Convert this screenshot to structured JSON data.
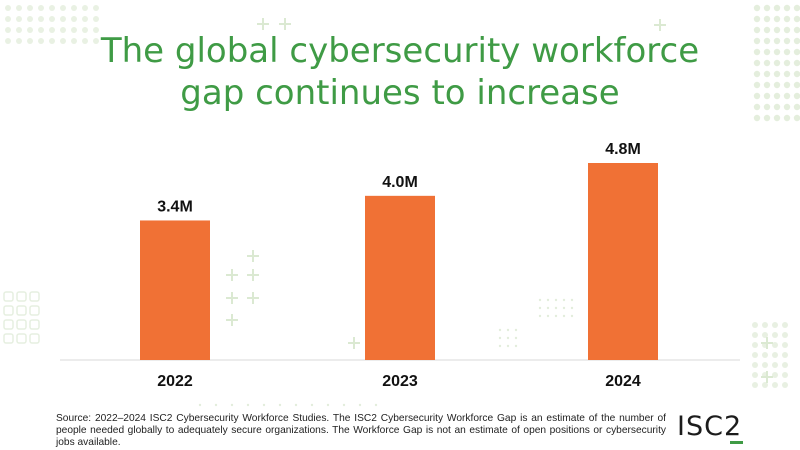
{
  "title_lines": [
    "The global cybersecurity workforce",
    "gap continues to increase"
  ],
  "chart_data": {
    "type": "bar",
    "categories": [
      "2022",
      "2023",
      "2024"
    ],
    "values": [
      3.4,
      4.0,
      4.8
    ],
    "value_labels": [
      "3.4M",
      "4.0M",
      "4.8M"
    ],
    "title": "The global cybersecurity workforce gap continues to increase",
    "xlabel": "",
    "ylabel": "",
    "ylim": [
      0,
      4.8
    ],
    "grid": false,
    "legend": "none",
    "bar_color": "#f07135",
    "label_color": "#111111"
  },
  "footnote": "Source: 2022–2024 ISC2 Cybersecurity Workforce Studies. The ISC2 Cybersecurity Workforce Gap is an estimate of the number of people needed globally to adequately secure organizations. The Workforce Gap is not an estimate of open positions or cybersecurity jobs available.",
  "logo_text": "ISC2",
  "colors": {
    "accent_green": "#3f9b45",
    "bar_orange": "#f07135",
    "deco_green": "#d8e8cf"
  }
}
